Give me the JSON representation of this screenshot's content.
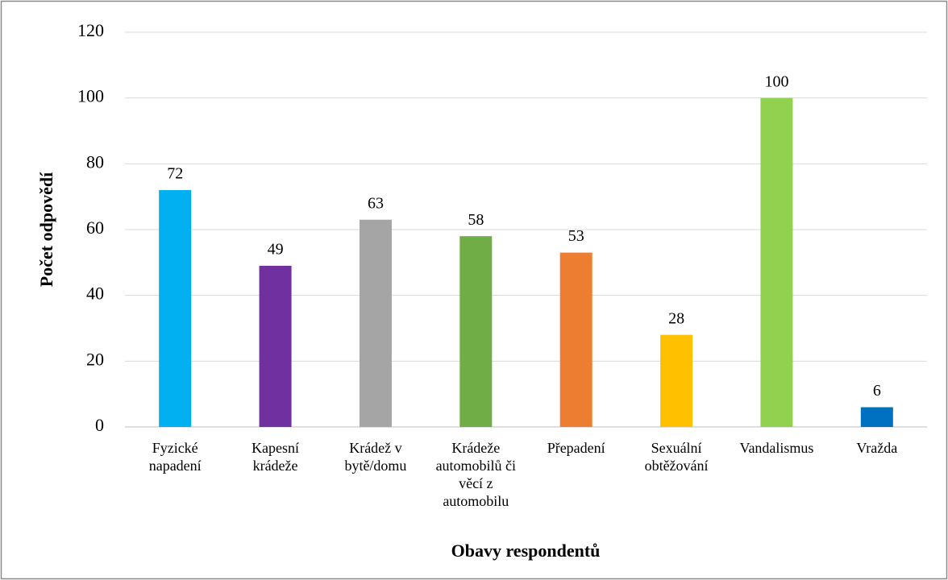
{
  "chart_data": {
    "type": "bar",
    "categories": [
      "Fyzické napadení",
      "Kapesní krádeže",
      "Krádež v bytě/domu",
      "Krádeže automobilů či věcí z automobilu",
      "Přepadení",
      "Sexuální obtěžování",
      "Vandalismus",
      "Vražda"
    ],
    "values": [
      72,
      49,
      63,
      58,
      53,
      28,
      100,
      6
    ],
    "colors": [
      "#00b0f0",
      "#7030a0",
      "#a5a5a5",
      "#70ad47",
      "#ed7d31",
      "#ffc000",
      "#92d050",
      "#0070c0"
    ],
    "x_label": "Obavy respondentů",
    "y_label": "Počet odpovědí",
    "ylim": [
      0,
      120
    ],
    "yticks": [
      0,
      20,
      40,
      60,
      80,
      100,
      120
    ],
    "grid": true
  }
}
